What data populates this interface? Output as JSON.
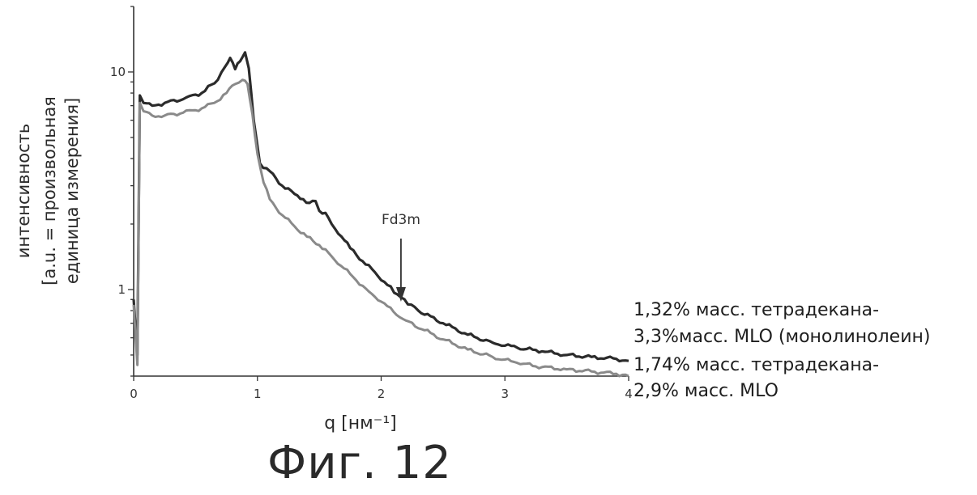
{
  "figure_caption": "Фиг. 12",
  "chart_data": {
    "type": "line",
    "xlabel": "q [нм⁻¹]",
    "ylabel": [
      "интенсивность",
      "[a.u. = произвольная",
      "единица измерения]"
    ],
    "xlim": [
      0,
      4
    ],
    "ylim": [
      0.4,
      20
    ],
    "yscale": "log",
    "x_ticks": [
      "0",
      "1",
      "2",
      "3",
      "4"
    ],
    "y_ticks": [
      "1",
      "10"
    ],
    "grid": false,
    "annotation": {
      "text": "Fd3m",
      "x": 2.16,
      "y": 0.85
    },
    "series": [
      {
        "name": [
          "1,32% масс. тетрадекана-",
          "3,3%масс. MLO (монолинолеин)"
        ],
        "color": "#2b2b2b",
        "x": [
          0.0,
          0.03,
          0.05,
          0.08,
          0.15,
          0.25,
          0.4,
          0.55,
          0.68,
          0.74,
          0.78,
          0.82,
          0.86,
          0.9,
          0.93,
          0.97,
          1.02,
          1.1,
          1.2,
          1.3,
          1.37,
          1.42,
          1.47,
          1.5,
          1.55,
          1.6,
          1.68,
          1.75,
          1.85,
          1.95,
          2.05,
          2.16,
          2.3,
          2.5,
          2.7,
          2.9,
          3.1,
          3.3,
          3.5,
          3.7,
          3.9,
          4.0
        ],
        "y": [
          0.9,
          0.5,
          7.8,
          7.2,
          7.0,
          7.2,
          7.5,
          8.0,
          9.2,
          10.6,
          11.6,
          10.3,
          11.2,
          12.3,
          10.4,
          6.0,
          3.8,
          3.5,
          3.0,
          2.75,
          2.6,
          2.5,
          2.55,
          2.3,
          2.25,
          2.0,
          1.75,
          1.55,
          1.35,
          1.2,
          1.05,
          0.92,
          0.8,
          0.7,
          0.62,
          0.57,
          0.54,
          0.52,
          0.5,
          0.49,
          0.48,
          0.47
        ]
      },
      {
        "name": [
          "1,74% масс. тетрадекана-",
          "2,9% масс. MLO"
        ],
        "color": "#8a8a8a",
        "x": [
          0.0,
          0.03,
          0.05,
          0.08,
          0.15,
          0.25,
          0.4,
          0.55,
          0.65,
          0.75,
          0.82,
          0.88,
          0.92,
          0.96,
          1.0,
          1.05,
          1.1,
          1.2,
          1.3,
          1.4,
          1.5,
          1.6,
          1.7,
          1.8,
          1.9,
          2.0,
          2.1,
          2.2,
          2.35,
          2.5,
          2.7,
          2.9,
          3.1,
          3.3,
          3.5,
          3.7,
          3.9,
          4.0
        ],
        "y": [
          0.85,
          0.45,
          7.2,
          6.6,
          6.3,
          6.3,
          6.5,
          6.8,
          7.2,
          8.0,
          8.8,
          9.2,
          8.8,
          6.4,
          4.2,
          3.1,
          2.6,
          2.2,
          1.95,
          1.75,
          1.6,
          1.42,
          1.25,
          1.1,
          0.98,
          0.88,
          0.79,
          0.72,
          0.65,
          0.59,
          0.53,
          0.49,
          0.46,
          0.44,
          0.43,
          0.42,
          0.41,
          0.4
        ]
      }
    ]
  }
}
